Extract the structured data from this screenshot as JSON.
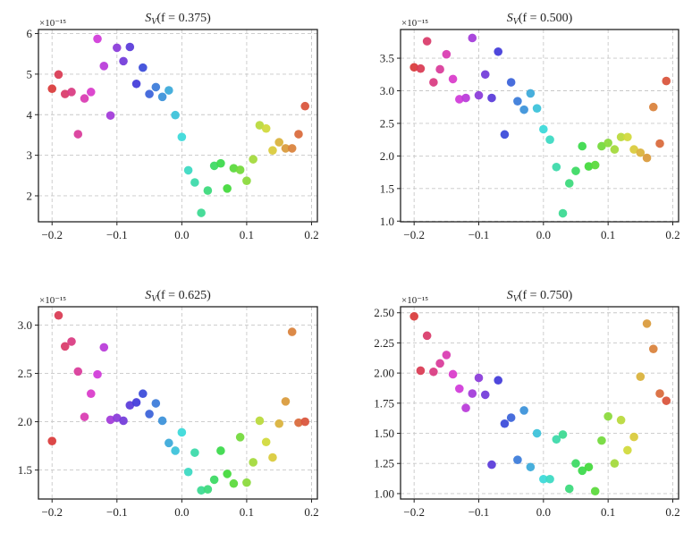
{
  "chart_data": [
    {
      "type": "scatter",
      "title": "S_V(f = 0.375)",
      "title_parts": {
        "sym": "S",
        "sub": "V",
        "rest": "(f = 0.375)"
      },
      "offset_label": "×10⁻¹⁵",
      "xlabel": "",
      "ylabel": "",
      "xlim": [
        -0.221,
        0.209
      ],
      "ylim": [
        1.36,
        6.1
      ],
      "xticks": [
        -0.2,
        -0.1,
        0.0,
        0.1,
        0.2
      ],
      "xtick_labels": [
        "−0.2",
        "−0.1",
        "0.0",
        "0.1",
        "0.2"
      ],
      "yticks": [
        2,
        3,
        4,
        5,
        6
      ],
      "ytick_labels": [
        "2",
        "3",
        "4",
        "5",
        "6"
      ],
      "grid": true,
      "x": [
        -0.2,
        -0.19,
        -0.18,
        -0.17,
        -0.16,
        -0.15,
        -0.14,
        -0.13,
        -0.12,
        -0.11,
        -0.1,
        -0.09,
        -0.08,
        -0.07,
        -0.06,
        -0.05,
        -0.04,
        -0.03,
        -0.02,
        -0.01,
        0.0,
        0.01,
        0.02,
        0.03,
        0.04,
        0.05,
        0.06,
        0.07,
        0.08,
        0.09,
        0.1,
        0.11,
        0.12,
        0.13,
        0.14,
        0.15,
        0.16,
        0.17,
        0.18,
        0.19
      ],
      "y": [
        4.64,
        4.99,
        4.51,
        4.56,
        3.52,
        4.4,
        4.56,
        5.87,
        5.2,
        3.98,
        5.65,
        5.32,
        5.67,
        4.76,
        5.16,
        4.51,
        4.68,
        4.44,
        4.6,
        3.99,
        3.45,
        2.63,
        2.33,
        1.58,
        2.13,
        2.74,
        2.8,
        2.18,
        2.68,
        2.64,
        2.37,
        2.9,
        3.74,
        3.66,
        3.12,
        3.32,
        3.17,
        3.17,
        3.52,
        4.21
      ]
    },
    {
      "type": "scatter",
      "title": "S_V(f = 0.500)",
      "title_parts": {
        "sym": "S",
        "sub": "V",
        "rest": "(f = 0.500)"
      },
      "offset_label": "×10⁻¹⁵",
      "xlabel": "",
      "ylabel": "",
      "xlim": [
        -0.221,
        0.209
      ],
      "ylim": [
        0.99,
        3.94
      ],
      "xticks": [
        -0.2,
        -0.1,
        0.0,
        0.1,
        0.2
      ],
      "xtick_labels": [
        "−0.2",
        "−0.1",
        "0.0",
        "0.1",
        "0.2"
      ],
      "yticks": [
        1.0,
        1.5,
        2.0,
        2.5,
        3.0,
        3.5
      ],
      "ytick_labels": [
        "1.0",
        "1.5",
        "2.0",
        "2.5",
        "3.0",
        "3.5"
      ],
      "grid": true,
      "x": [
        -0.2,
        -0.19,
        -0.18,
        -0.17,
        -0.16,
        -0.15,
        -0.14,
        -0.13,
        -0.12,
        -0.11,
        -0.1,
        -0.09,
        -0.08,
        -0.07,
        -0.06,
        -0.05,
        -0.04,
        -0.03,
        -0.02,
        -0.01,
        0.0,
        0.01,
        0.02,
        0.03,
        0.04,
        0.05,
        0.06,
        0.07,
        0.08,
        0.09,
        0.1,
        0.11,
        0.12,
        0.13,
        0.14,
        0.15,
        0.16,
        0.17,
        0.18,
        0.19
      ],
      "y": [
        3.36,
        3.34,
        3.76,
        3.13,
        3.33,
        3.56,
        3.18,
        2.87,
        2.89,
        3.81,
        2.93,
        3.25,
        2.89,
        3.6,
        2.33,
        3.13,
        2.84,
        2.71,
        2.96,
        2.73,
        2.41,
        2.25,
        1.83,
        1.12,
        1.58,
        1.77,
        2.15,
        1.84,
        1.86,
        2.15,
        2.2,
        2.1,
        2.29,
        2.29,
        2.1,
        2.05,
        1.97,
        2.75,
        2.19,
        3.15
      ]
    },
    {
      "type": "scatter",
      "title": "S_V(f = 0.625)",
      "title_parts": {
        "sym": "S",
        "sub": "V",
        "rest": "(f = 0.625)"
      },
      "offset_label": "×10⁻¹⁵",
      "xlabel": "",
      "ylabel": "",
      "xlim": [
        -0.221,
        0.209
      ],
      "ylim": [
        1.2,
        3.19
      ],
      "xticks": [
        -0.2,
        -0.1,
        0.0,
        0.1,
        0.2
      ],
      "xtick_labels": [
        "−0.2",
        "−0.1",
        "0.0",
        "0.1",
        "0.2"
      ],
      "yticks": [
        1.5,
        2.0,
        2.5,
        3.0
      ],
      "ytick_labels": [
        "1.5",
        "2.0",
        "2.5",
        "3.0"
      ],
      "grid": true,
      "x": [
        -0.2,
        -0.19,
        -0.18,
        -0.17,
        -0.16,
        -0.15,
        -0.14,
        -0.13,
        -0.12,
        -0.11,
        -0.1,
        -0.09,
        -0.08,
        -0.07,
        -0.06,
        -0.05,
        -0.04,
        -0.03,
        -0.02,
        -0.01,
        0.0,
        0.01,
        0.02,
        0.03,
        0.04,
        0.05,
        0.06,
        0.07,
        0.08,
        0.09,
        0.1,
        0.11,
        0.12,
        0.13,
        0.14,
        0.15,
        0.16,
        0.17,
        0.18,
        0.19
      ],
      "y": [
        1.8,
        3.1,
        2.78,
        2.83,
        2.52,
        2.05,
        2.29,
        2.49,
        2.77,
        2.02,
        2.04,
        2.01,
        2.17,
        2.2,
        2.29,
        2.08,
        2.19,
        2.01,
        1.78,
        1.7,
        1.89,
        1.48,
        1.68,
        1.29,
        1.3,
        1.4,
        1.7,
        1.46,
        1.36,
        1.84,
        1.37,
        1.58,
        2.01,
        1.79,
        1.63,
        1.98,
        2.21,
        2.93,
        1.99,
        2.0
      ]
    },
    {
      "type": "scatter",
      "title": "S_V(f = 0.750)",
      "title_parts": {
        "sym": "S",
        "sub": "V",
        "rest": "(f = 0.750)"
      },
      "offset_label": "×10⁻¹⁵",
      "xlabel": "",
      "ylabel": "",
      "xlim": [
        -0.221,
        0.209
      ],
      "ylim": [
        0.955,
        2.55
      ],
      "xticks": [
        -0.2,
        -0.1,
        0.0,
        0.1,
        0.2
      ],
      "xtick_labels": [
        "−0.2",
        "−0.1",
        "0.0",
        "0.1",
        "0.2"
      ],
      "yticks": [
        1.0,
        1.25,
        1.5,
        1.75,
        2.0,
        2.25,
        2.5
      ],
      "ytick_labels": [
        "1.00",
        "1.25",
        "1.50",
        "1.75",
        "2.00",
        "2.25",
        "2.50"
      ],
      "grid": true,
      "x": [
        -0.2,
        -0.19,
        -0.18,
        -0.17,
        -0.16,
        -0.15,
        -0.14,
        -0.13,
        -0.12,
        -0.11,
        -0.1,
        -0.09,
        -0.08,
        -0.07,
        -0.06,
        -0.05,
        -0.04,
        -0.03,
        -0.02,
        -0.01,
        0.0,
        0.01,
        0.02,
        0.03,
        0.04,
        0.05,
        0.06,
        0.07,
        0.08,
        0.09,
        0.1,
        0.11,
        0.12,
        0.13,
        0.14,
        0.15,
        0.16,
        0.17,
        0.18,
        0.19
      ],
      "y": [
        2.47,
        2.02,
        2.31,
        2.01,
        2.08,
        2.15,
        1.99,
        1.87,
        1.71,
        1.83,
        1.96,
        1.82,
        1.24,
        1.94,
        1.58,
        1.63,
        1.28,
        1.69,
        1.22,
        1.5,
        1.12,
        1.12,
        1.45,
        1.49,
        1.04,
        1.25,
        1.19,
        1.22,
        1.02,
        1.44,
        1.64,
        1.25,
        1.61,
        1.36,
        1.47,
        1.97,
        2.41,
        2.2,
        1.83,
        1.77
      ]
    }
  ]
}
